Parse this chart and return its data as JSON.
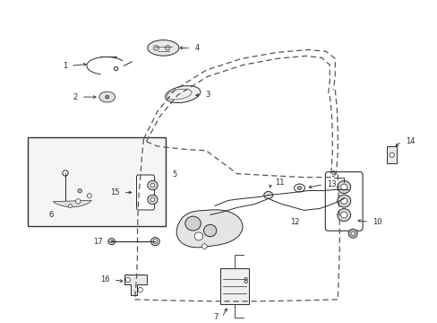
{
  "background_color": "#ffffff",
  "line_color": "#2a2a2a",
  "fig_width": 4.89,
  "fig_height": 3.6,
  "dpi": 100,
  "door_outline": {
    "color": "#555555",
    "lw": 0.9,
    "dash": [
      5,
      3
    ]
  },
  "part_lw": 0.7,
  "label_fontsize": 6.0,
  "arrow_mutation_scale": 5
}
